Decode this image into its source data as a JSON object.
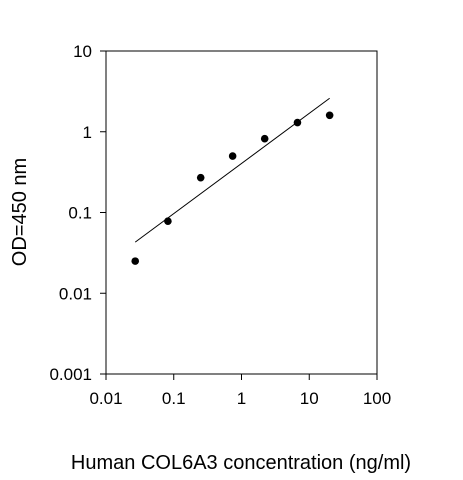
{
  "chart_data": {
    "type": "scatter",
    "title": "",
    "xlabel": "Human COL6A3 concentration (ng/ml)",
    "ylabel": "OD=450 nm",
    "xscale": "log",
    "yscale": "log",
    "xlim": [
      0.01,
      100
    ],
    "ylim": [
      0.001,
      10
    ],
    "xticks": [
      0.01,
      0.1,
      1,
      10,
      100
    ],
    "xtick_labels": [
      "0.01",
      "0.1",
      "1",
      "10",
      "100"
    ],
    "yticks": [
      0.001,
      0.01,
      0.1,
      1,
      10
    ],
    "ytick_labels": [
      "0.001",
      "0.01",
      "0.1",
      "1",
      "10"
    ],
    "grid": false,
    "legend": "none",
    "series": [
      {
        "marker": "filled-circle",
        "color": "#000000",
        "x": [
          0.027,
          0.082,
          0.25,
          0.74,
          2.2,
          6.7,
          20
        ],
        "y": [
          0.025,
          0.078,
          0.27,
          0.5,
          0.82,
          1.3,
          1.6
        ]
      }
    ],
    "fit_line": {
      "color": "#000000",
      "x": [
        0.027,
        20
      ],
      "y": [
        0.043,
        2.6
      ]
    }
  }
}
